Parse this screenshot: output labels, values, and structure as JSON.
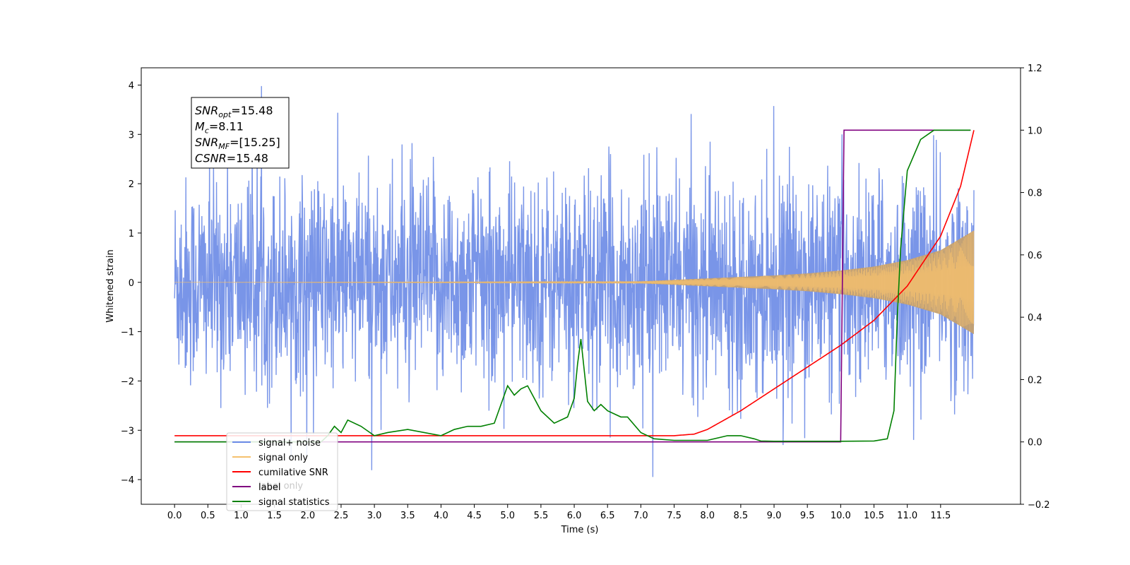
{
  "chart_data": {
    "type": "line",
    "xlabel": "Time (s)",
    "ylabel": "Whitened strain",
    "xlim": [
      -0.5,
      12.7
    ],
    "ylim": [
      -4.5,
      4.35
    ],
    "y2lim": [
      -0.2,
      1.2
    ],
    "x_ticks": [
      0.0,
      0.5,
      1.0,
      1.5,
      2.0,
      2.5,
      3.0,
      3.5,
      4.0,
      4.5,
      5.0,
      5.5,
      6.0,
      6.5,
      7.0,
      7.5,
      8.0,
      8.5,
      9.0,
      9.5,
      10.0,
      10.5,
      11.0,
      11.5
    ],
    "x_tick_labels": [
      "0.0",
      "0.5",
      "1.0",
      "1.5",
      "2.0",
      "2.5",
      "3.0",
      "3.5",
      "4.0",
      "4.5",
      "5.0",
      "5.5",
      "6.0",
      "6.5",
      "7.0",
      "7.5",
      "8.0",
      "8.5",
      "9.0",
      "9.5",
      "10.0",
      "10.5",
      "11.0",
      "11.5"
    ],
    "y_ticks": [
      -4,
      -3,
      -2,
      -1,
      0,
      1,
      2,
      3,
      4
    ],
    "y_tick_labels": [
      "−4",
      "−3",
      "−2",
      "−1",
      "0",
      "1",
      "2",
      "3",
      "4"
    ],
    "y2_ticks": [
      -0.2,
      0.0,
      0.2,
      0.4,
      0.6,
      0.8,
      1.0,
      1.2
    ],
    "y2_tick_labels": [
      "−0.2",
      "0.0",
      "0.2",
      "0.4",
      "0.6",
      "0.8",
      "1.0",
      "1.2"
    ],
    "legend_placement": "lower-left",
    "colors": {
      "noise": "#6a8ae6",
      "signal": "#f5c16e",
      "signal_fill": "#c4a070",
      "snr": "#ff0000",
      "label": "#800080",
      "stats": "#008000"
    },
    "series": [
      {
        "name": "signal+ noise",
        "axis": "left",
        "description_level_band": {
          "x_range": [
            0.0,
            12.0
          ],
          "typical_amplitude": 2.2,
          "peak_max": 3.98,
          "peak_min": -4.1
        }
      },
      {
        "name": "signal only",
        "axis": "left",
        "envelope": {
          "x": [
            0.0,
            7.0,
            7.5,
            8.0,
            8.5,
            9.0,
            9.5,
            10.0,
            10.5,
            11.0,
            11.5,
            12.0
          ],
          "amplitude": [
            0.0,
            0.02,
            0.05,
            0.08,
            0.11,
            0.14,
            0.18,
            0.24,
            0.32,
            0.45,
            0.65,
            1.05
          ]
        }
      },
      {
        "name": "cumilative SNR",
        "axis": "right",
        "x": [
          0.0,
          7.5,
          7.8,
          8.0,
          8.5,
          9.0,
          9.5,
          10.0,
          10.5,
          11.0,
          11.5,
          11.8,
          12.0
        ],
        "y": [
          0.02,
          0.02,
          0.025,
          0.04,
          0.1,
          0.17,
          0.24,
          0.31,
          0.39,
          0.5,
          0.66,
          0.82,
          1.0
        ]
      },
      {
        "name": "label",
        "axis": "right",
        "x": [
          0.0,
          10.0,
          10.05,
          11.95
        ],
        "y": [
          0.0,
          0.0,
          1.0,
          1.0
        ]
      },
      {
        "name": "signal statistics",
        "axis": "right",
        "x": [
          0.0,
          2.2,
          2.3,
          2.4,
          2.5,
          2.6,
          2.8,
          3.0,
          3.2,
          3.5,
          4.0,
          4.2,
          4.4,
          4.6,
          4.8,
          5.0,
          5.1,
          5.2,
          5.3,
          5.5,
          5.7,
          5.9,
          6.0,
          6.05,
          6.1,
          6.2,
          6.3,
          6.4,
          6.5,
          6.7,
          6.8,
          7.0,
          7.2,
          7.5,
          8.0,
          8.3,
          8.5,
          8.7,
          8.8,
          9.0,
          9.5,
          10.0,
          10.5,
          10.7,
          10.8,
          10.85,
          10.9,
          11.0,
          11.2,
          11.4,
          11.95
        ],
        "y": [
          0.0,
          0.0,
          0.02,
          0.05,
          0.03,
          0.07,
          0.05,
          0.02,
          0.03,
          0.04,
          0.02,
          0.04,
          0.05,
          0.05,
          0.06,
          0.18,
          0.15,
          0.17,
          0.18,
          0.1,
          0.06,
          0.08,
          0.14,
          0.25,
          0.33,
          0.13,
          0.1,
          0.12,
          0.1,
          0.08,
          0.08,
          0.03,
          0.01,
          0.005,
          0.005,
          0.02,
          0.02,
          0.01,
          0.003,
          0.002,
          0.002,
          0.002,
          0.003,
          0.01,
          0.1,
          0.4,
          0.62,
          0.87,
          0.97,
          1.0,
          1.0
        ]
      }
    ],
    "legend": [
      {
        "label": "signal+ noise",
        "color_key": "noise"
      },
      {
        "label": "signal only",
        "color_key": "signal"
      },
      {
        "label": "cumilative SNR",
        "color_key": "snr"
      },
      {
        "label": "label",
        "color_key": "label"
      },
      {
        "label": "signal statistics",
        "color_key": "stats"
      }
    ],
    "hidden_legend_remnant": "label only",
    "annotation_box": {
      "lines": [
        {
          "main": "SNR",
          "sub": "opt",
          "rest": "=15.48"
        },
        {
          "main": "M",
          "sub": "c",
          "rest": "=8.11"
        },
        {
          "main": "SNR",
          "sub": "MF",
          "rest": "=[15.25]"
        },
        {
          "main": "CSNR",
          "sub": "",
          "rest": "=15.48"
        }
      ]
    }
  }
}
